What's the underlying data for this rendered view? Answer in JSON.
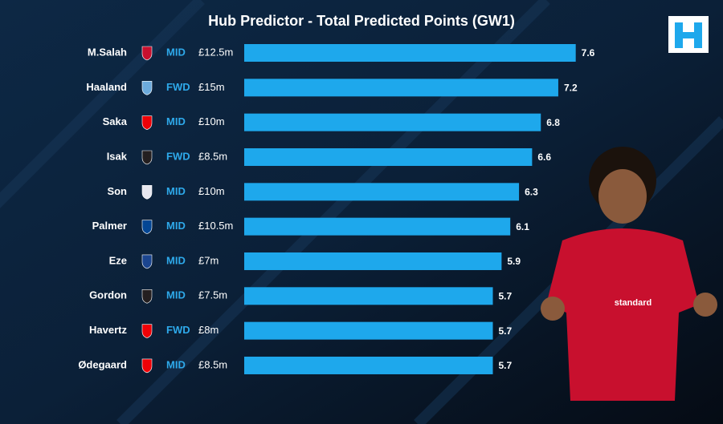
{
  "chart_data": {
    "type": "bar",
    "title": "Hub Predictor - Total Predicted Points (GW1)",
    "categories": [
      "M.Salah",
      "Haaland",
      "Saka",
      "Isak",
      "Son",
      "Palmer",
      "Eze",
      "Gordon",
      "Havertz",
      "Ødegaard"
    ],
    "positions": [
      "MID",
      "FWD",
      "MID",
      "FWD",
      "MID",
      "MID",
      "MID",
      "MID",
      "FWD",
      "MID"
    ],
    "prices": [
      "£12.5m",
      "£15m",
      "£10m",
      "£8.5m",
      "£10m",
      "£10.5m",
      "£7m",
      "£7.5m",
      "£8m",
      "£8.5m"
    ],
    "values": [
      7.6,
      7.2,
      6.8,
      6.6,
      6.3,
      6.1,
      5.9,
      5.7,
      5.7,
      5.7
    ],
    "color": "#1ea8ec",
    "position_color": "#2ea9ea",
    "badge_colors": [
      "#c8102e",
      "#6cabdd",
      "#ef0107",
      "#241f20",
      "#e8e8f0",
      "#034694",
      "#1b458f",
      "#241f20",
      "#ef0107",
      "#ef0107"
    ]
  }
}
